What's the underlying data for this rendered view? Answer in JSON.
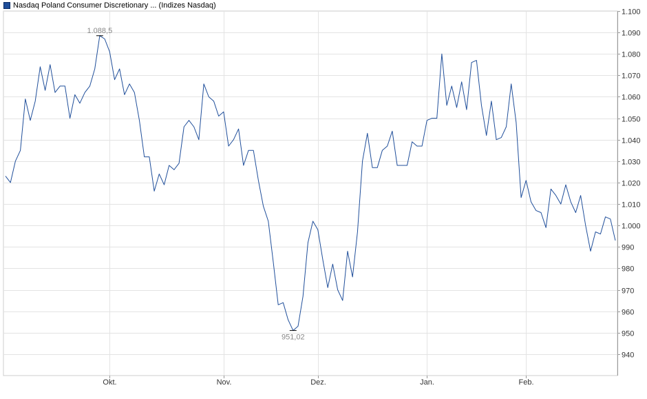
{
  "legend": {
    "label": "Nasdaq Poland Consumer Discretionary ... (Indizes Nasdaq)",
    "color": "#1f4e9a"
  },
  "chart_data": {
    "type": "line",
    "title": "",
    "legend_position": "top-left",
    "grid": true,
    "ylim": [
      930,
      1100
    ],
    "y_ticks": [
      940,
      950,
      960,
      970,
      980,
      990,
      1000,
      1010,
      1020,
      1030,
      1040,
      1050,
      1060,
      1070,
      1080,
      1090,
      1100
    ],
    "y_tick_labels": [
      "940",
      "950",
      "960",
      "970",
      "980",
      "990",
      "1.000",
      "1.010",
      "1.020",
      "1.030",
      "1.040",
      "1.050",
      "1.060",
      "1.070",
      "1.080",
      "1.090",
      "1.100"
    ],
    "x_ticks": [
      {
        "label": "Okt.",
        "index": 21
      },
      {
        "label": "Nov.",
        "index": 44
      },
      {
        "label": "Dez.",
        "index": 63
      },
      {
        "label": "Jan.",
        "index": 85
      },
      {
        "label": "Feb.",
        "index": 105
      }
    ],
    "annotations": [
      {
        "label": "1.088,5",
        "index": 19,
        "value": 1088.5,
        "position": "above"
      },
      {
        "label": "951,02",
        "index": 58,
        "value": 951.02,
        "position": "below"
      }
    ],
    "series": [
      {
        "color": "#1f4e9a",
        "values": [
          1023,
          1020,
          1030,
          1035,
          1059,
          1049,
          1058,
          1074,
          1063,
          1075,
          1062,
          1065,
          1065,
          1050,
          1061,
          1057,
          1062,
          1065,
          1073,
          1088.5,
          1087,
          1081,
          1068,
          1073,
          1061,
          1066,
          1062,
          1049,
          1032,
          1032,
          1016,
          1024,
          1019,
          1028,
          1026,
          1029,
          1046,
          1049,
          1046,
          1040,
          1066,
          1060,
          1058,
          1051,
          1053,
          1037,
          1040,
          1045,
          1028,
          1035,
          1035,
          1021,
          1009,
          1002,
          983,
          963,
          964,
          956,
          951.02,
          953,
          967,
          992,
          1002,
          998,
          984,
          971,
          982,
          970,
          965,
          988,
          976,
          997,
          1030,
          1043,
          1027,
          1027,
          1035,
          1037,
          1044,
          1028,
          1028,
          1028,
          1039,
          1037,
          1037,
          1049,
          1050,
          1050,
          1080,
          1056,
          1065,
          1055,
          1067,
          1054,
          1076,
          1077,
          1056,
          1042,
          1058,
          1040,
          1041,
          1046,
          1066,
          1048,
          1013,
          1021,
          1011,
          1007,
          1006,
          999,
          1017,
          1014,
          1010,
          1019,
          1011,
          1006,
          1014,
          1000,
          988,
          997,
          996,
          1004,
          1003,
          993
        ]
      }
    ]
  }
}
